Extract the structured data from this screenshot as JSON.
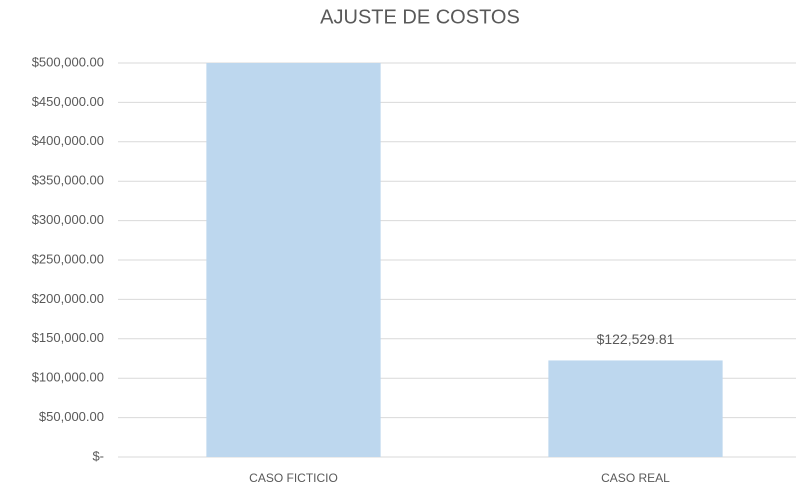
{
  "chart_data": {
    "type": "bar",
    "title": "AJUSTE DE COSTOS",
    "categories": [
      "CASO FICTICIO",
      "CASO REAL"
    ],
    "values": [
      500000,
      122529.81
    ],
    "value_labels": [
      null,
      "$122,529.81"
    ],
    "color": "#bdd7ee",
    "ylim": [
      0,
      500000
    ],
    "yticks": [
      {
        "value": 0,
        "label": "$-"
      },
      {
        "value": 50000,
        "label": "$50,000.00"
      },
      {
        "value": 100000,
        "label": "$100,000.00"
      },
      {
        "value": 150000,
        "label": "$150,000.00"
      },
      {
        "value": 200000,
        "label": "$200,000.00"
      },
      {
        "value": 250000,
        "label": "$250,000.00"
      },
      {
        "value": 300000,
        "label": "$300,000.00"
      },
      {
        "value": 350000,
        "label": "$350,000.00"
      },
      {
        "value": 400000,
        "label": "$400,000.00"
      },
      {
        "value": 450000,
        "label": "$450,000.00"
      },
      {
        "value": 500000,
        "label": "$500,000.00"
      }
    ],
    "grid": true
  }
}
